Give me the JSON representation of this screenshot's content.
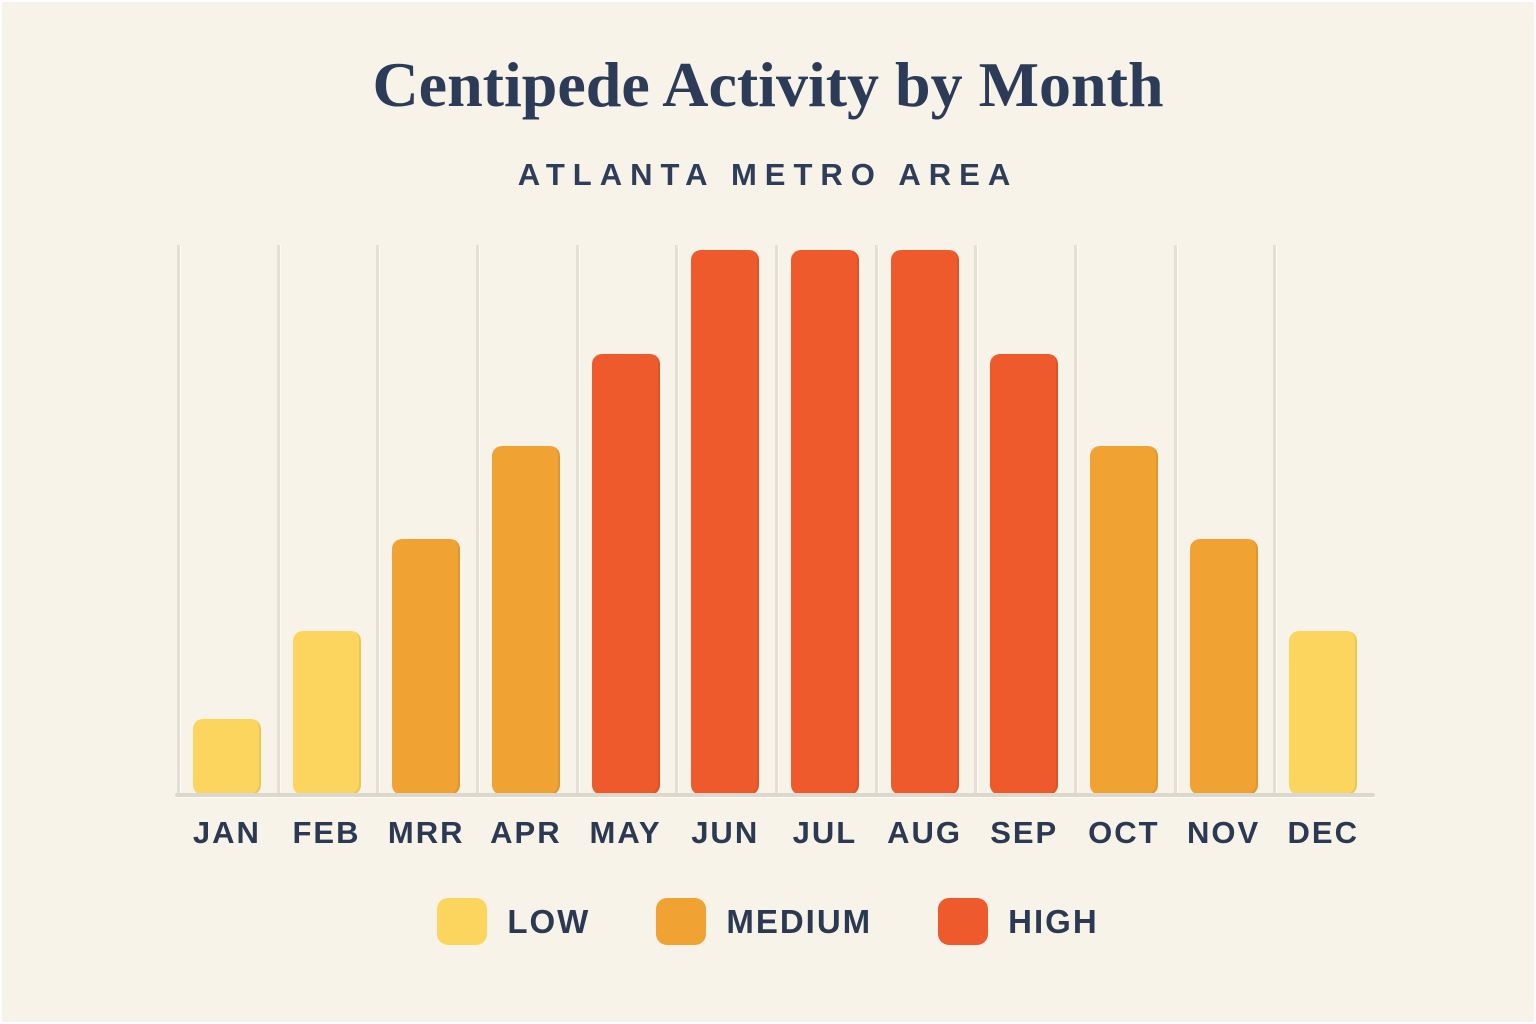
{
  "title": "Centipede Activity by Month",
  "subtitle": "ATLANTA METRO AREA",
  "colors": {
    "low": "#FBD55E",
    "medium": "#F0A233",
    "high": "#EE5A2B",
    "background": "#F7F3E8",
    "title_text": "#2C3B57",
    "label_text": "#2B3A52",
    "gridline": "#E4E0D5",
    "baseline": "#DCD8CC"
  },
  "legend": [
    {
      "label": "LOW",
      "color": "#FBD55E"
    },
    {
      "label": "MEDIUM",
      "color": "#F0A233"
    },
    {
      "label": "HIGH",
      "color": "#EE5A2B"
    }
  ],
  "chart_data": {
    "type": "bar",
    "title": "Centipede Activity by Month",
    "subtitle": "ATLANTA METRO AREA",
    "categories": [
      "JAN",
      "FEB",
      "MRR",
      "APR",
      "MAY",
      "JUN",
      "JUL",
      "AUG",
      "SEP",
      "OCT",
      "NOV",
      "DEC"
    ],
    "values": [
      14,
      30,
      47,
      64,
      81,
      100,
      100,
      100,
      81,
      64,
      47,
      30
    ],
    "levels": [
      "low",
      "low",
      "medium",
      "medium",
      "high",
      "high",
      "high",
      "high",
      "high",
      "medium",
      "medium",
      "low"
    ],
    "xlabel": "",
    "ylabel": "",
    "ylim": [
      0,
      100
    ],
    "grid": "vertical",
    "legend_position": "bottom",
    "legend_entries": [
      "LOW",
      "MEDIUM",
      "HIGH"
    ]
  }
}
